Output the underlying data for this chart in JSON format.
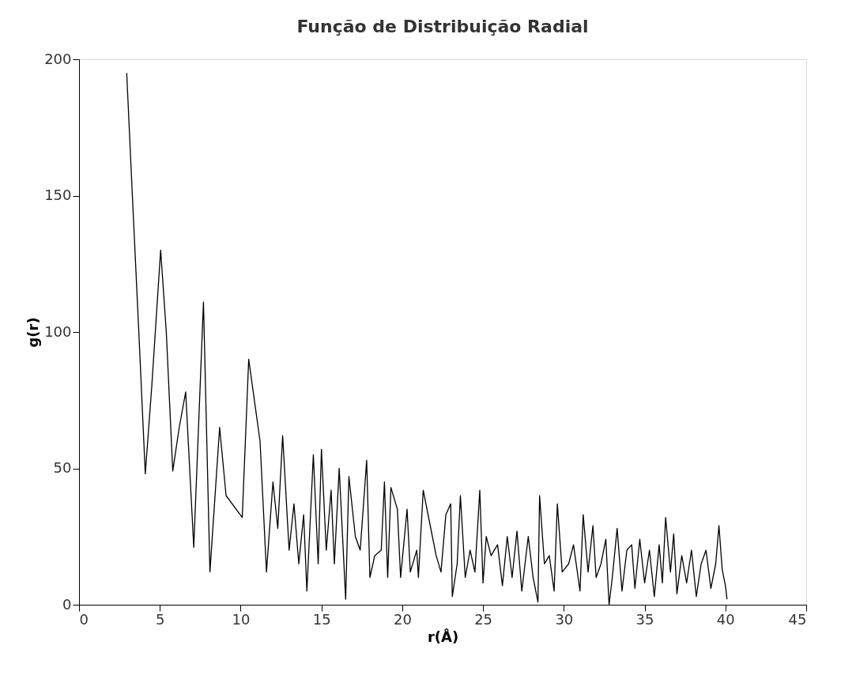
{
  "chart_data": {
    "type": "line",
    "title": "Função de Distribuição Radial",
    "xlabel": "r(Å)",
    "ylabel": "g(r)",
    "xlim": [
      0,
      45
    ],
    "xticks": [
      0,
      5,
      10,
      15,
      20,
      25,
      30,
      35,
      40,
      45
    ],
    "ylim": [
      0,
      200
    ],
    "yticks": [
      0,
      50,
      100,
      150,
      200
    ],
    "grid": false,
    "marker": "none",
    "line_style": "solid",
    "series": [
      {
        "color": "#000000",
        "x": [
          2.95,
          3.3,
          3.7,
          4.1,
          4.5,
          5.05,
          5.4,
          5.8,
          6.2,
          6.6,
          7.1,
          7.7,
          8.1,
          8.7,
          9.1,
          10.1,
          10.5,
          11.2,
          11.6,
          12.0,
          12.3,
          12.6,
          13.0,
          13.3,
          13.6,
          13.9,
          14.1,
          14.5,
          14.8,
          15.0,
          15.3,
          15.6,
          15.8,
          16.1,
          16.5,
          16.7,
          17.1,
          17.4,
          17.8,
          18.0,
          18.3,
          18.7,
          18.9,
          19.1,
          19.3,
          19.7,
          19.9,
          20.3,
          20.5,
          20.9,
          21.0,
          21.3,
          21.7,
          22.1,
          22.4,
          22.7,
          23.0,
          23.1,
          23.4,
          23.6,
          23.9,
          24.2,
          24.5,
          24.8,
          25.0,
          25.2,
          25.5,
          25.9,
          26.2,
          26.5,
          26.8,
          27.1,
          27.4,
          27.8,
          28.1,
          28.4,
          28.5,
          28.8,
          29.1,
          29.4,
          29.6,
          29.9,
          30.3,
          30.6,
          31.0,
          31.2,
          31.5,
          31.8,
          32.0,
          32.3,
          32.6,
          32.8,
          33.0,
          33.3,
          33.6,
          33.9,
          34.2,
          34.4,
          34.7,
          35.0,
          35.3,
          35.6,
          35.9,
          36.1,
          36.3,
          36.6,
          36.8,
          37.0,
          37.3,
          37.6,
          37.9,
          38.2,
          38.5,
          38.8,
          39.1,
          39.4,
          39.6,
          39.8,
          40.0,
          40.1
        ],
        "values": [
          195,
          150,
          100,
          48,
          80,
          130,
          100,
          49,
          65,
          78,
          21,
          111,
          12,
          65,
          40,
          32,
          90,
          60,
          12,
          45,
          28,
          62,
          20,
          37,
          15,
          33,
          5,
          55,
          15,
          57,
          20,
          42,
          15,
          50,
          2,
          47,
          25,
          20,
          53,
          10,
          18,
          20,
          45,
          10,
          43,
          35,
          10,
          35,
          12,
          20,
          10,
          42,
          30,
          18,
          12,
          33,
          37,
          3,
          15,
          40,
          10,
          20,
          12,
          42,
          8,
          25,
          18,
          22,
          7,
          25,
          10,
          27,
          5,
          25,
          10,
          1,
          40,
          15,
          18,
          5,
          37,
          12,
          15,
          22,
          5,
          33,
          12,
          29,
          10,
          15,
          24,
          0,
          10,
          28,
          5,
          20,
          22,
          6,
          24,
          8,
          20,
          3,
          22,
          8,
          32,
          12,
          26,
          4,
          18,
          8,
          20,
          3,
          15,
          20,
          6,
          15,
          29,
          13,
          7,
          2
        ]
      }
    ]
  }
}
